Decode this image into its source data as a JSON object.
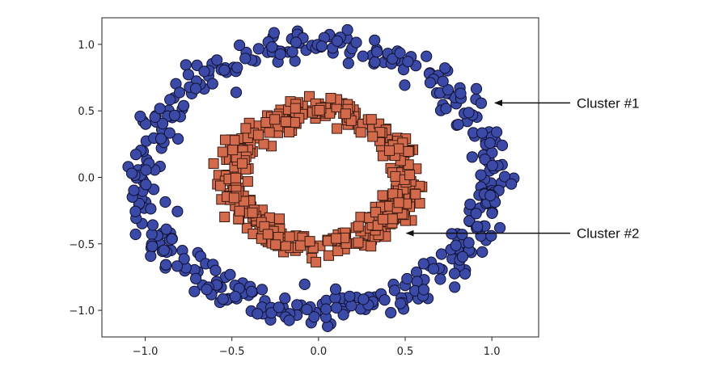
{
  "chart_data": {
    "type": "scatter",
    "title": "",
    "xlabel": "",
    "ylabel": "",
    "xlim": [
      -1.25,
      1.27
    ],
    "ylim": [
      -1.2,
      1.2
    ],
    "xticks": [
      -1.0,
      -0.5,
      0.0,
      0.5,
      1.0
    ],
    "yticks": [
      -1.0,
      -0.5,
      0.0,
      0.5,
      1.0
    ],
    "xtick_labels": [
      "−1.0",
      "−0.5",
      "0.0",
      "0.5",
      "1.0"
    ],
    "ytick_labels": [
      "−1.0",
      "−0.5",
      "0.0",
      "0.5",
      "1.0"
    ],
    "grid": false,
    "series": [
      {
        "marker": "circle",
        "color": "#3a4aa6",
        "edge_color": "#111133",
        "shape": "ring",
        "radius": 1.0,
        "center": [
          0.0,
          0.0
        ],
        "noise": 0.06,
        "count": 420
      },
      {
        "marker": "square",
        "color": "#d46a4c",
        "edge_color": "#3a1a10",
        "shape": "ring",
        "radius": 0.5,
        "center": [
          0.0,
          0.0
        ],
        "noise": 0.05,
        "count": 420
      }
    ],
    "annotations": [
      {
        "text": "Cluster #1",
        "target": [
          0.99,
          0.56
        ]
      },
      {
        "text": "Cluster #2",
        "target": [
          0.48,
          -0.42
        ]
      }
    ]
  }
}
